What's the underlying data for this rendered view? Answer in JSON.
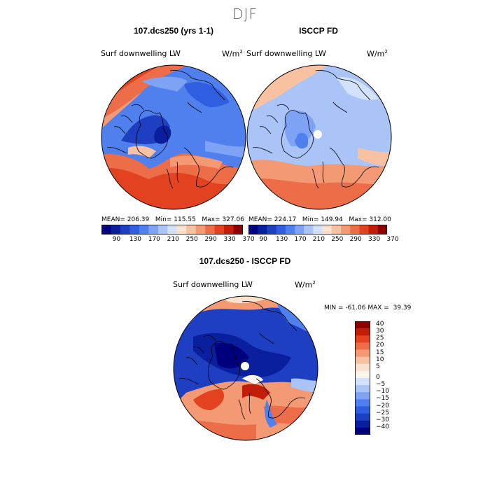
{
  "title": "DJF",
  "panels": [
    {
      "title": "107.dcs250 (yrs 1-1)",
      "variable": "Surf downwelling LW",
      "units": "W/m",
      "units_exp": "2",
      "stats": {
        "mean_label": "MEAN=",
        "mean": "206.39",
        "min_label": "Min=",
        "min": "115.55",
        "max_label": "Max=",
        "max": "327.06"
      }
    },
    {
      "title": "ISCCP FD",
      "variable": "Surf downwelling LW",
      "units": "W/m",
      "units_exp": "2",
      "stats": {
        "mean_label": "MEAN=",
        "mean": "224.17",
        "min_label": "Min=",
        "min": "149.94",
        "max_label": "Max=",
        "max": "312.00"
      }
    },
    {
      "title": "107.dcs250 - ISCCP FD",
      "variable": "Surf downwelling LW",
      "units": "W/m",
      "units_exp": "2",
      "stats": {
        "min_label": "MIN =",
        "min": "-61.06",
        "max_label": "MAX =",
        "max": "39.39"
      }
    }
  ],
  "colorbar_abs": {
    "ticks": [
      "90",
      "130",
      "170",
      "210",
      "250",
      "290",
      "330",
      "370"
    ],
    "colors": [
      "#00007f",
      "#0a1f9e",
      "#1f3fc2",
      "#2f5fe0",
      "#4f80ee",
      "#7ea2f4",
      "#aac4f8",
      "#d3e2fb",
      "#fbe2cf",
      "#f8c1a2",
      "#f39a75",
      "#ec6d48",
      "#e2421f",
      "#c21d07",
      "#8c0000"
    ]
  },
  "colorbar_diff": {
    "ticks": [
      "40",
      "30",
      "25",
      "20",
      "15",
      "10",
      "5",
      "0",
      "−5",
      "−10",
      "−15",
      "−20",
      "−25",
      "−30",
      "−40"
    ],
    "colors": [
      "#8c0000",
      "#c21d07",
      "#e2421f",
      "#ec6d48",
      "#f39a75",
      "#f8c1a2",
      "#fbe2cf",
      "#fdf5ec",
      "#d3e2fb",
      "#aac4f8",
      "#7ea2f4",
      "#4f80ee",
      "#2f5fe0",
      "#1f3fc2",
      "#0a1f9e",
      "#00007f"
    ]
  }
}
